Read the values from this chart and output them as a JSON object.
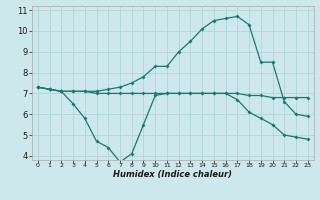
{
  "xlabel": "Humidex (Indice chaleur)",
  "bg_color": "#cce8ec",
  "grid_color": "#b0d0d4",
  "line_color": "#1a7a6e",
  "xlim": [
    -0.5,
    23.5
  ],
  "ylim": [
    3.8,
    11.2
  ],
  "yticks": [
    4,
    5,
    6,
    7,
    8,
    9,
    10,
    11
  ],
  "xticks": [
    0,
    1,
    2,
    3,
    4,
    5,
    6,
    7,
    8,
    9,
    10,
    11,
    12,
    13,
    14,
    15,
    16,
    17,
    18,
    19,
    20,
    21,
    22,
    23
  ],
  "line1_x": [
    0,
    1,
    2,
    3,
    4,
    5,
    6,
    7,
    8,
    9,
    10,
    11,
    12,
    13,
    14,
    15,
    16,
    17,
    18,
    19,
    20,
    21,
    22,
    23
  ],
  "line1_y": [
    7.3,
    7.2,
    7.1,
    7.1,
    7.1,
    7.0,
    7.0,
    7.0,
    7.0,
    7.0,
    7.0,
    7.0,
    7.0,
    7.0,
    7.0,
    7.0,
    7.0,
    7.0,
    6.9,
    6.9,
    6.8,
    6.8,
    6.8,
    6.8
  ],
  "line2_x": [
    0,
    1,
    2,
    3,
    4,
    5,
    6,
    7,
    8,
    9,
    10,
    11,
    12,
    13,
    14,
    15,
    16,
    17,
    18,
    19,
    20,
    21,
    22,
    23
  ],
  "line2_y": [
    7.3,
    7.2,
    7.1,
    6.5,
    5.8,
    4.7,
    4.4,
    3.7,
    4.1,
    5.5,
    6.9,
    7.0,
    7.0,
    7.0,
    7.0,
    7.0,
    7.0,
    6.7,
    6.1,
    5.8,
    5.5,
    5.0,
    4.9,
    4.8
  ],
  "line3_x": [
    0,
    1,
    2,
    3,
    4,
    5,
    6,
    7,
    8,
    9,
    10,
    11,
    12,
    13,
    14,
    15,
    16,
    17,
    18,
    19,
    20,
    21,
    22,
    23
  ],
  "line3_y": [
    7.3,
    7.2,
    7.1,
    7.1,
    7.1,
    7.1,
    7.2,
    7.3,
    7.5,
    7.8,
    8.3,
    8.3,
    9.0,
    9.5,
    10.1,
    10.5,
    10.6,
    10.7,
    10.3,
    8.5,
    8.5,
    6.6,
    6.0,
    5.9
  ]
}
